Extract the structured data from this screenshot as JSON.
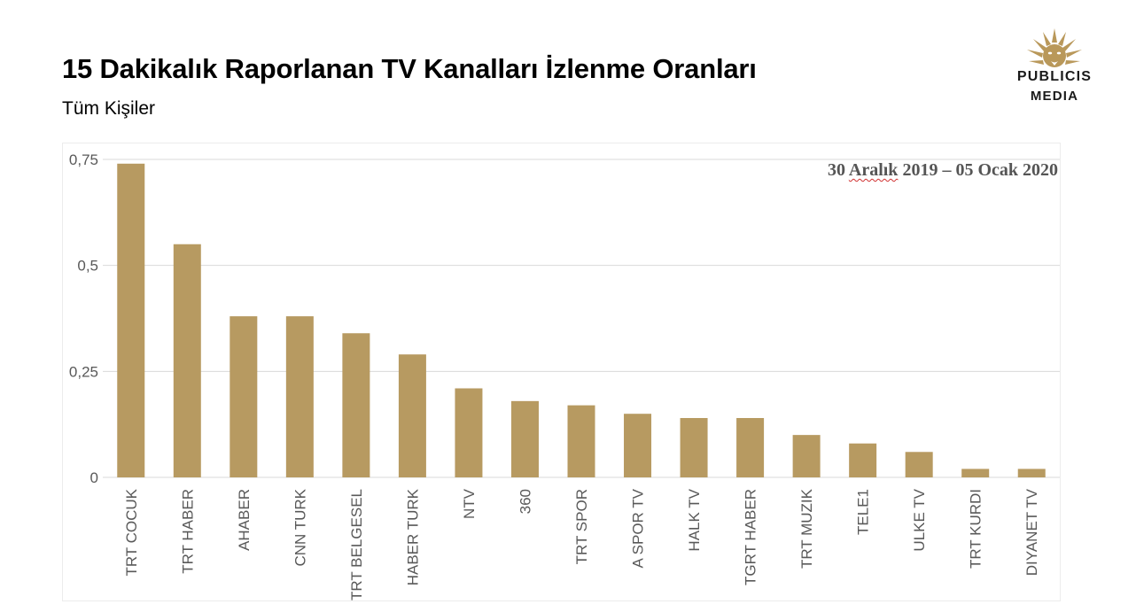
{
  "header": {
    "title": "15 Dakikalık Raporlanan TV Kanalları İzlenme Oranları",
    "subtitle": "Tüm Kişiler"
  },
  "logo": {
    "line1": "PUBLICIS",
    "line2": "MEDIA",
    "icon": "lion-head-icon",
    "color": "#b9985a"
  },
  "date_range": {
    "prefix": "30 ",
    "word": "Aralık",
    "suffix": " 2019 – 05 Ocak 2020"
  },
  "chart_data": {
    "type": "bar",
    "title": "15 Dakikalık Raporlanan TV Kanalları İzlenme Oranları",
    "subtitle": "Tüm Kişiler",
    "categories": [
      "TRT COCUK",
      "TRT HABER",
      "AHABER",
      "CNN TURK",
      "TRT BELGESEL",
      "HABER TURK",
      "NTV",
      "360",
      "TRT SPOR",
      "A SPOR TV",
      "HALK TV",
      "TGRT HABER",
      "TRT MUZIK",
      "TELE1",
      "ULKE TV",
      "TRT KURDI",
      "DIYANET TV"
    ],
    "values": [
      0.74,
      0.55,
      0.38,
      0.38,
      0.34,
      0.29,
      0.21,
      0.18,
      0.17,
      0.15,
      0.14,
      0.14,
      0.1,
      0.08,
      0.06,
      0.02,
      0.02
    ],
    "ylim": [
      0,
      0.75
    ],
    "yticks": [
      0,
      0.25,
      0.5,
      0.75
    ],
    "ytick_labels": [
      "0",
      "0,25",
      "0,5",
      "0,75"
    ],
    "xlabel": "",
    "ylabel": "",
    "grid": true,
    "bar_color": "#b79a61",
    "grid_color": "#d9d9d9",
    "legend": "none"
  }
}
